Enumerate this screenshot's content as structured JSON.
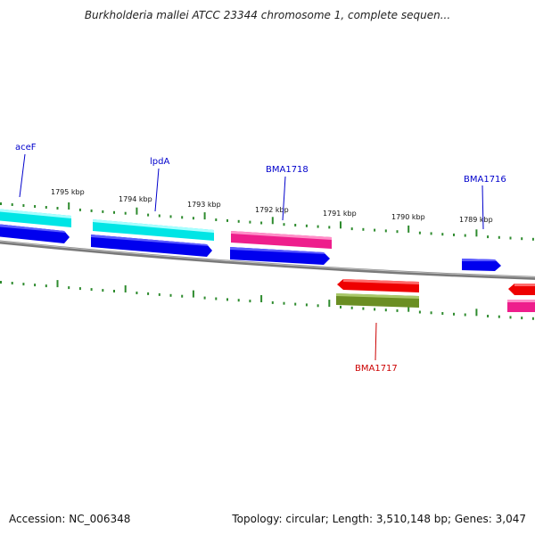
{
  "title": "Burkholderia mallei ATCC 23344 chromosome 1, complete sequen...",
  "footer": {
    "accession": "Accession: NC_006348",
    "info": "Topology: circular; Length: 3,510,148 bp; Genes: 3,047"
  },
  "ticks": [
    "1795 kbp",
    "1794 kbp",
    "1793 kbp",
    "1792 kbp",
    "1791 kbp",
    "1790 kbp",
    "1789 kbp"
  ],
  "gene_labels": [
    "aceF",
    "lpdA",
    "BMA1718",
    "BMA1716",
    "BMA1717"
  ],
  "colors": {
    "backbone": "#808080",
    "tick": "#2e8b2e",
    "cyan": "#00e5e5",
    "blue": "#0000ee",
    "pink": "#ee1e8c",
    "red": "#ee0000",
    "olive": "#6b8e23",
    "label_blue": "#0000cc",
    "label_red": "#cc0000"
  }
}
